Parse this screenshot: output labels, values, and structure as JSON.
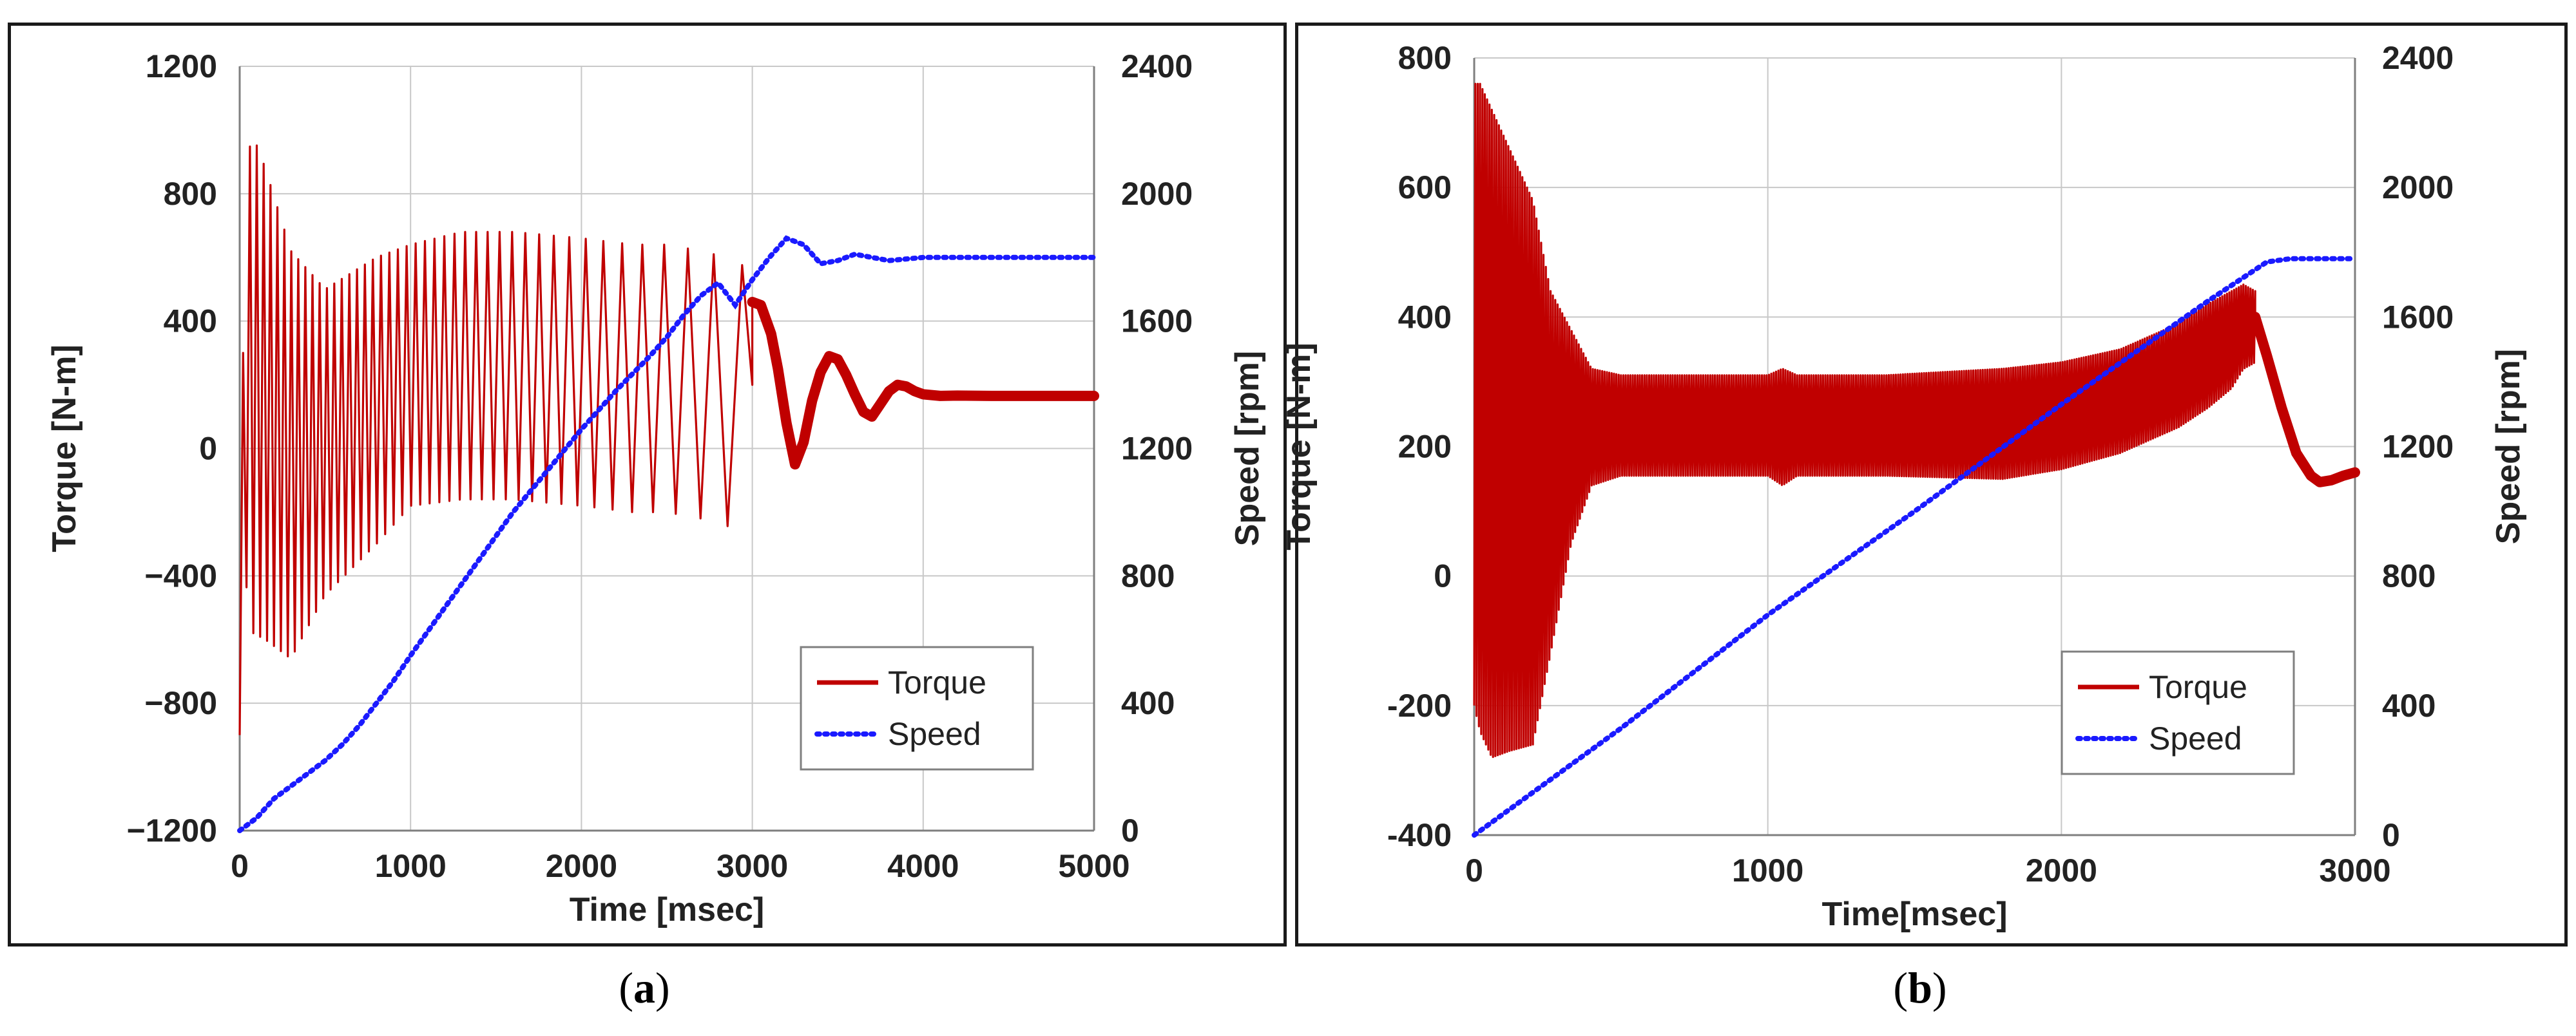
{
  "chart_data": [
    {
      "type": "line",
      "panel": "a",
      "xlabel": "Time [msec]",
      "ylabel_left": "Torque [N-m]",
      "ylabel_right": "Speed [rpm]",
      "xlim": [
        0,
        5000
      ],
      "ylim_left": [
        -1200,
        1200
      ],
      "ylim_right": [
        0,
        2400
      ],
      "xticks": [
        "0",
        "1000",
        "2000",
        "3000",
        "4000",
        "5000"
      ],
      "yticks_left": [
        "−1200",
        "−800",
        "−400",
        "0",
        "400",
        "800",
        "1200"
      ],
      "yticks_right": [
        "0",
        "400",
        "800",
        "1200",
        "1600",
        "2000",
        "2400"
      ],
      "grid": true,
      "legend_position": "bottom-right",
      "colors": {
        "torque": "#c00000",
        "speed": "#1a1aff"
      },
      "series": [
        {
          "name": "Torque",
          "axis": "left",
          "style": "solid",
          "envelope": {
            "t": [
              0,
              30,
              80,
              150,
              300,
              500,
              800,
              1000,
              1300,
              1600,
              2000,
              2300,
              2500,
              2700,
              2850,
              3000,
              3100,
              3250,
              3400,
              3500,
              3600,
              3700,
              3800,
              3900,
              4000,
              4200,
              5000
            ],
            "upper": [
              -900,
              900,
              980,
              880,
              620,
              500,
              600,
              640,
              680,
              680,
              660,
              640,
              640,
              620,
              600,
              560,
              440,
              60,
              200,
              290,
              220,
              130,
              170,
              200,
              190,
              175,
              170
            ],
            "lower": [
              -900,
              -400,
              -580,
              -600,
              -660,
              -460,
              -300,
              -180,
              -160,
              -160,
              -180,
              -200,
              -200,
              -220,
              -260,
              200,
              300,
              -50,
              120,
              240,
              150,
              100,
              150,
              180,
              170,
              155,
              155
            ]
          },
          "damped_tail": {
            "t": [
              3000,
              3050,
              3110,
              3150,
              3200,
              3250,
              3300,
              3350,
              3400,
              3450,
              3500,
              3550,
              3600,
              3650,
              3700,
              3750,
              3800,
              3850,
              3900,
              3950,
              4000,
              4100,
              4200,
              4400,
              4700,
              5000
            ],
            "v": [
              460,
              450,
              360,
              250,
              80,
              -50,
              20,
              150,
              240,
              290,
              280,
              230,
              170,
              115,
              100,
              140,
              180,
              200,
              195,
              180,
              170,
              165,
              166,
              165,
              165,
              165
            ]
          }
        },
        {
          "name": "Speed",
          "axis": "right",
          "style": "dotted",
          "x": [
            0,
            100,
            200,
            300,
            400,
            500,
            600,
            700,
            800,
            900,
            1000,
            1200,
            1400,
            1600,
            1800,
            2000,
            2200,
            2400,
            2500,
            2600,
            2700,
            2800,
            2900,
            3000,
            3100,
            3200,
            3300,
            3400,
            3500,
            3600,
            3700,
            3800,
            4000,
            5000
          ],
          "y": [
            0,
            40,
            100,
            140,
            180,
            220,
            270,
            330,
            400,
            470,
            550,
            700,
            850,
            1000,
            1130,
            1260,
            1380,
            1490,
            1550,
            1620,
            1680,
            1720,
            1650,
            1730,
            1800,
            1860,
            1840,
            1780,
            1790,
            1810,
            1800,
            1790,
            1800,
            1800
          ]
        }
      ]
    },
    {
      "type": "line",
      "panel": "b",
      "xlabel": "Time[msec]",
      "ylabel_left": "Torque [N-m]",
      "ylabel_right": "Speed [rpm]",
      "xlim": [
        0,
        3000
      ],
      "ylim_left": [
        -400,
        800
      ],
      "ylim_right": [
        0,
        2400
      ],
      "xticks": [
        "0",
        "1000",
        "2000",
        "3000"
      ],
      "yticks_left": [
        "-400",
        "-200",
        "0",
        "200",
        "400",
        "600",
        "800"
      ],
      "yticks_right": [
        "0",
        "400",
        "800",
        "1200",
        "1600",
        "2000",
        "2400"
      ],
      "grid": true,
      "legend_position": "bottom-right",
      "colors": {
        "torque": "#c00000",
        "speed": "#1a1aff"
      },
      "series": [
        {
          "name": "Torque",
          "axis": "left",
          "style": "solid",
          "envelope": {
            "t": [
              0,
              20,
              60,
              120,
              200,
              260,
              330,
              400,
              500,
              700,
              1000,
              1050,
              1100,
              1400,
              1800,
              2000,
              2200,
              2400,
              2500,
              2580,
              2620,
              2660
            ],
            "upper": [
              760,
              760,
              720,
              660,
              580,
              440,
              380,
              320,
              310,
              310,
              310,
              320,
              310,
              310,
              320,
              330,
              350,
              390,
              420,
              440,
              450,
              440
            ],
            "lower": [
              -200,
              -240,
              -280,
              -270,
              -260,
              -120,
              50,
              140,
              155,
              155,
              155,
              140,
              155,
              155,
              150,
              165,
              190,
              230,
              260,
              290,
              320,
              330
            ]
          },
          "damped_tail": {
            "t": [
              2660,
              2700,
              2750,
              2800,
              2850,
              2880,
              2920,
              2960,
              3000
            ],
            "v": [
              400,
              340,
              260,
              190,
              155,
              145,
              148,
              155,
              160
            ]
          }
        },
        {
          "name": "Speed",
          "axis": "right",
          "style": "dotted",
          "x": [
            0,
            500,
            1000,
            1500,
            2000,
            2500,
            2700,
            2780,
            3000
          ],
          "y": [
            0,
            330,
            680,
            1000,
            1330,
            1650,
            1770,
            1780,
            1780
          ]
        }
      ]
    }
  ],
  "captions": {
    "a": "a",
    "b": "b"
  }
}
